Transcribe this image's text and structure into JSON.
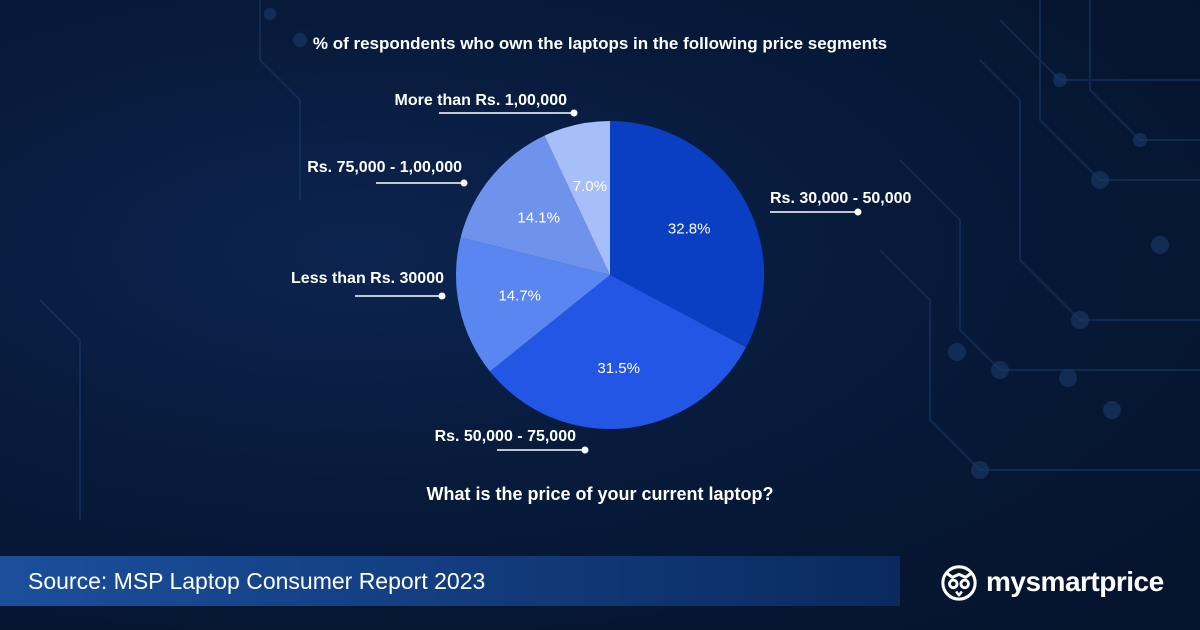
{
  "chart_data": {
    "type": "pie",
    "title": "% of respondents who own the laptops in the following price segments",
    "subtitle": "What is the price of your current laptop?",
    "slices": [
      {
        "label": "Rs. 30,000 - 50,000",
        "value": 32.8,
        "display": "32.8%",
        "color": "#0a3fc4"
      },
      {
        "label": "Rs. 50,000 - 75,000",
        "value": 31.5,
        "display": "31.5%",
        "color": "#2456e6"
      },
      {
        "label": "Less than Rs. 30000",
        "value": 14.7,
        "display": "14.7%",
        "color": "#5a86f2"
      },
      {
        "label": "Rs. 75,000 - 1,00,000",
        "value": 14.1,
        "display": "14.1%",
        "color": "#6f93ec"
      },
      {
        "label": "More than Rs. 1,00,000",
        "value": 7.0,
        "display": "7.0%",
        "color": "#a7bff8"
      }
    ]
  },
  "footer": {
    "source": "Source: MSP Laptop Consumer Report 2023",
    "brand": "mysmartprice",
    "brand_icon": "owl-logo-icon"
  }
}
